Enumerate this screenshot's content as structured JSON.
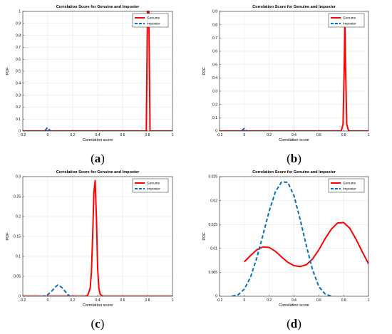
{
  "chart_data": [
    {
      "type": "line",
      "caption": "a",
      "title": "Correlation Score for Genuine and Imposter",
      "xlabel": "Correlation score",
      "ylabel": "PDF",
      "xlim": [
        -0.2,
        1
      ],
      "ylim": [
        0,
        1
      ],
      "xticks": [
        "-0.2",
        "0",
        "0.2",
        "0.4",
        "0.6",
        "0.8",
        "1"
      ],
      "yticks": [
        "0",
        "0.1",
        "0.2",
        "0.3",
        "0.4",
        "0.5",
        "0.6",
        "0.7",
        "0.8",
        "0.9",
        "1"
      ],
      "grid": true,
      "legend_position": "top-right",
      "series": [
        {
          "name": "Genuine",
          "color": "#ff0000",
          "dash": "solid",
          "x": [
            -0.2,
            0.0,
            0.2,
            0.4,
            0.6,
            0.79,
            0.8,
            0.805,
            0.81,
            0.82,
            1.0
          ],
          "y": [
            0,
            0,
            0,
            0,
            0,
            0,
            1.05,
            1.05,
            1.05,
            0,
            0
          ]
        },
        {
          "name": "Imposter",
          "color": "#0072bd",
          "dash": "dashed",
          "x": [
            -0.02,
            -0.01,
            0.0,
            0.01,
            0.02
          ],
          "y": [
            0.005,
            0.02,
            0.03,
            0.015,
            0.002
          ]
        }
      ]
    },
    {
      "type": "line",
      "caption": "b",
      "title": "Correlation Score for Genuine and Imposter",
      "xlabel": "Correlation score",
      "ylabel": "PDF",
      "xlim": [
        -0.2,
        1
      ],
      "ylim": [
        0,
        0.9
      ],
      "xticks": [
        "-0.2",
        "0",
        "0.2",
        "0.4",
        "0.6",
        "0.8",
        "1"
      ],
      "yticks": [
        "0",
        "0.1",
        "0.2",
        "0.3",
        "0.4",
        "0.5",
        "0.6",
        "0.7",
        "0.8",
        "0.9"
      ],
      "grid": true,
      "legend_position": "top-right",
      "series": [
        {
          "name": "Genuine",
          "color": "#ff0000",
          "dash": "solid",
          "x": [
            -0.2,
            0.0,
            0.2,
            0.4,
            0.6,
            0.78,
            0.795,
            0.805,
            0.81,
            0.815,
            0.825,
            0.84,
            1.0
          ],
          "y": [
            0,
            0,
            0,
            0,
            0,
            0,
            0.05,
            0.5,
            0.81,
            0.5,
            0.05,
            0,
            0
          ]
        },
        {
          "name": "Imposter",
          "color": "#0072bd",
          "dash": "dashed",
          "x": [
            -0.02,
            -0.01,
            0.0,
            0.01,
            0.02
          ],
          "y": [
            0.003,
            0.012,
            0.02,
            0.01,
            0.002
          ]
        }
      ]
    },
    {
      "type": "line",
      "caption": "c",
      "title": "Correlation Score for Genuine and Imposter",
      "xlabel": "Correlation score",
      "ylabel": "PDF",
      "xlim": [
        -0.2,
        1
      ],
      "ylim": [
        0,
        0.3
      ],
      "xticks": [
        "-0.2",
        "0",
        "0.2",
        "0.4",
        "0.6",
        "0.8",
        "1"
      ],
      "yticks": [
        "0",
        "0.05",
        "0.1",
        "0.15",
        "0.2",
        "0.25",
        "0.3"
      ],
      "grid": true,
      "legend_position": "top-right",
      "series": [
        {
          "name": "Genuine",
          "color": "#ff0000",
          "dash": "solid",
          "x": [
            -0.2,
            0.0,
            0.2,
            0.3,
            0.32,
            0.34,
            0.35,
            0.36,
            0.37,
            0.38,
            0.39,
            0.4,
            0.41,
            0.42,
            0.44,
            0.6,
            0.8,
            1.0
          ],
          "y": [
            0,
            0,
            0,
            0,
            0.002,
            0.02,
            0.06,
            0.15,
            0.26,
            0.29,
            0.2,
            0.07,
            0.02,
            0.005,
            0,
            0,
            0,
            0
          ]
        },
        {
          "name": "Imposter",
          "color": "#0072bd",
          "dash": "dashed",
          "x": [
            -0.05,
            -0.02,
            0.0,
            0.03,
            0.06,
            0.08,
            0.1,
            0.12,
            0.14,
            0.16,
            0.18
          ],
          "y": [
            0.0,
            0.001,
            0.004,
            0.012,
            0.023,
            0.028,
            0.025,
            0.02,
            0.012,
            0.004,
            0.0
          ]
        }
      ]
    },
    {
      "type": "line",
      "caption": "d",
      "title": "Correlation Score for Genuine and Imposter",
      "xlabel": "Correlation score",
      "ylabel": "PDF",
      "xlim": [
        -0.2,
        1
      ],
      "ylim": [
        0,
        0.025
      ],
      "xticks": [
        "-0.2",
        "0",
        "0.2",
        "0.4",
        "0.6",
        "0.8",
        "1"
      ],
      "yticks": [
        "0",
        "0.005",
        "0.01",
        "0.015",
        "0.02",
        "0.025"
      ],
      "grid": true,
      "legend_position": "top-right",
      "series": [
        {
          "name": "Genuine",
          "color": "#ff0000",
          "dash": "solid",
          "x": [
            0.0,
            0.05,
            0.1,
            0.15,
            0.2,
            0.25,
            0.3,
            0.35,
            0.4,
            0.45,
            0.5,
            0.55,
            0.6,
            0.65,
            0.7,
            0.75,
            0.8,
            0.85,
            0.9,
            0.95,
            1.0
          ],
          "y": [
            0.0072,
            0.0085,
            0.0097,
            0.0103,
            0.0102,
            0.0094,
            0.0082,
            0.0071,
            0.0064,
            0.0062,
            0.0066,
            0.0078,
            0.0097,
            0.012,
            0.014,
            0.0153,
            0.0154,
            0.0142,
            0.0119,
            0.0093,
            0.0068
          ]
        },
        {
          "name": "Imposter",
          "color": "#0072bd",
          "dash": "dashed",
          "x": [
            -0.1,
            -0.05,
            0.0,
            0.05,
            0.1,
            0.15,
            0.2,
            0.25,
            0.3,
            0.35,
            0.4,
            0.45,
            0.5,
            0.55,
            0.6,
            0.65,
            0.7
          ],
          "y": [
            0.0,
            0.0003,
            0.0015,
            0.004,
            0.008,
            0.0128,
            0.0178,
            0.0218,
            0.0239,
            0.0238,
            0.021,
            0.016,
            0.0105,
            0.0055,
            0.002,
            0.0005,
            0.0
          ]
        }
      ]
    }
  ]
}
